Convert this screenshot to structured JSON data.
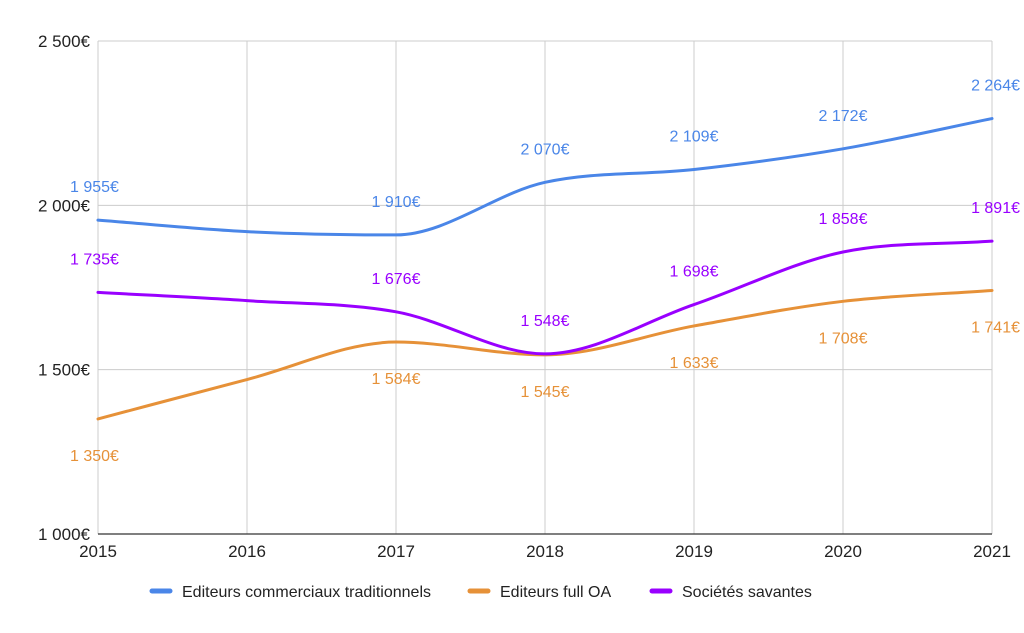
{
  "chart_data": {
    "type": "line",
    "title": "",
    "xlabel": "",
    "ylabel": "",
    "categories": [
      "2015",
      "2016",
      "2017",
      "2018",
      "2019",
      "2020",
      "2021"
    ],
    "ylim": [
      1000,
      2500
    ],
    "y_ticks": [
      1000,
      1500,
      2000,
      2500
    ],
    "y_tick_labels": [
      "1 000€",
      "1 500€",
      "2 000€",
      "2 500€"
    ],
    "grid": true,
    "legend_position": "bottom",
    "series": [
      {
        "name": "Editeurs commerciaux traditionnels",
        "color": "#4a86e8",
        "values": [
          1955,
          1920,
          1910,
          2070,
          2109,
          2172,
          2264
        ],
        "labels": [
          "1 955€",
          "",
          "1 910€",
          "2 070€",
          "2 109€",
          "2 172€",
          "2 264€"
        ]
      },
      {
        "name": "Editeurs full OA",
        "color": "#e69138",
        "values": [
          1350,
          1470,
          1584,
          1545,
          1633,
          1708,
          1741
        ],
        "labels": [
          "1 350€",
          "",
          "1 584€",
          "1 545€",
          "1 633€",
          "1 708€",
          "1 741€"
        ]
      },
      {
        "name": "Sociétés savantes",
        "color": "#9900ff",
        "values": [
          1735,
          1710,
          1676,
          1548,
          1698,
          1858,
          1891
        ],
        "labels": [
          "1 735€",
          "",
          "1 676€",
          "1 548€",
          "1 698€",
          "1 858€",
          "1 891€"
        ]
      }
    ]
  }
}
